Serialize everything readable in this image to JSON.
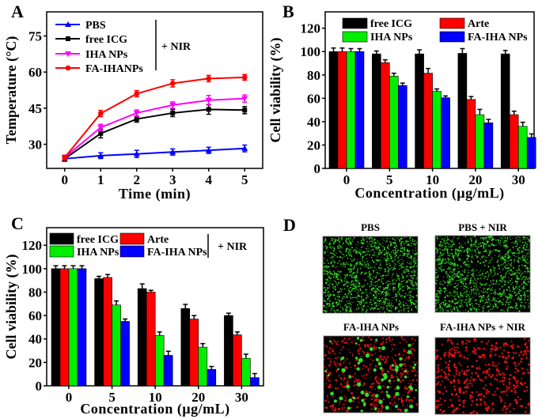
{
  "panel_labels": [
    "A",
    "B",
    "C",
    "D"
  ],
  "chart_data": [
    {
      "type": "line",
      "panel": "A",
      "xlabel": "Time (min)",
      "ylabel": "Temperature (°C)",
      "x": [
        0,
        1,
        2,
        3,
        4,
        5
      ],
      "xticks": [
        0,
        1,
        2,
        3,
        4,
        5
      ],
      "yticks": [
        30,
        45,
        60,
        75
      ],
      "xlim": [
        -0.5,
        5.5
      ],
      "ylim": [
        20,
        85
      ],
      "legend_note": "+ NIR",
      "legend_placement": "top-left",
      "series": [
        {
          "name": "PBS",
          "color": "#0000ff",
          "marker": "triangle-up",
          "values": [
            24,
            25.3,
            26,
            26.8,
            27.5,
            28.3
          ],
          "error": [
            1,
            1.2,
            1.5,
            1.3,
            1.3,
            1.4
          ]
        },
        {
          "name": "free ICG",
          "color": "#000000",
          "marker": "square",
          "values": [
            24,
            34.5,
            40.5,
            43,
            44.5,
            44.2
          ],
          "error": [
            1,
            1.8,
            1.3,
            1.5,
            2,
            1.5
          ]
        },
        {
          "name": "IHA NPs",
          "color": "#ff00ff",
          "marker": "triangle-down",
          "values": [
            24.5,
            37,
            43,
            46.3,
            48.3,
            49
          ],
          "error": [
            1,
            1.3,
            1.3,
            1.3,
            2,
            1.5
          ]
        },
        {
          "name": "FA-IHANPs",
          "color": "#ff0000",
          "marker": "circle",
          "values": [
            24.5,
            42.8,
            51,
            55.3,
            57.3,
            57.8
          ],
          "error": [
            1,
            1.3,
            1.3,
            1.5,
            1.3,
            1.2
          ]
        }
      ]
    },
    {
      "type": "bar",
      "panel": "B",
      "xlabel": "Concentration (μg/mL)",
      "ylabel": "Cell viability (%)",
      "categories": [
        "0",
        "5",
        "10",
        "20",
        "30"
      ],
      "yticks": [
        0,
        20,
        40,
        60,
        80,
        100,
        120
      ],
      "ylim": [
        0,
        134
      ],
      "legend_placement": "top",
      "series": [
        {
          "name": "free ICG",
          "color": "#000000",
          "values": [
            100,
            98,
            98,
            98.5,
            98
          ],
          "error": [
            3,
            2.5,
            3.5,
            4,
            3
          ]
        },
        {
          "name": "Arte",
          "color": "#ff0000",
          "values": [
            100,
            90.5,
            81.5,
            59,
            46
          ],
          "error": [
            3,
            2.5,
            4,
            2.5,
            3
          ]
        },
        {
          "name": "IHA NPs",
          "color": "#00ee00",
          "values": [
            100,
            79,
            66,
            46,
            36
          ],
          "error": [
            2.5,
            2.5,
            2,
            4.5,
            3.5
          ]
        },
        {
          "name": "FA-IHA NPs",
          "color": "#0000ff",
          "values": [
            100,
            71,
            60.5,
            39,
            26.5
          ],
          "error": [
            2.5,
            2,
            1.5,
            3,
            3
          ]
        }
      ]
    },
    {
      "type": "bar",
      "panel": "C",
      "xlabel": "Concentration (μg/mL)",
      "ylabel": "Cell viability (%)",
      "categories": [
        "0",
        "5",
        "10",
        "20",
        "30"
      ],
      "yticks": [
        0,
        20,
        40,
        60,
        80,
        100,
        120
      ],
      "ylim": [
        0,
        135
      ],
      "legend_note": "+ NIR",
      "legend_placement": "top",
      "series": [
        {
          "name": "free ICG",
          "color": "#000000",
          "values": [
            100,
            91.5,
            83,
            66,
            60
          ],
          "error": [
            2.5,
            2,
            4,
            3.5,
            2
          ]
        },
        {
          "name": "Arte",
          "color": "#ff0000",
          "values": [
            100,
            92.5,
            80,
            57,
            43.5
          ],
          "error": [
            2.5,
            2.5,
            1.5,
            3,
            2.5
          ]
        },
        {
          "name": "IHA NPs",
          "color": "#00ee00",
          "values": [
            100,
            69,
            43,
            33,
            23.5
          ],
          "error": [
            2.5,
            3.5,
            3,
            3,
            3.5
          ]
        },
        {
          "name": "FA-IHA NPs",
          "color": "#0000ff",
          "values": [
            100,
            55,
            26,
            14,
            7
          ],
          "error": [
            2.5,
            2,
            3.5,
            2.5,
            3.5
          ]
        }
      ]
    }
  ],
  "micrographs": [
    {
      "label": "PBS",
      "live_color": "#33dd22",
      "dead_color": "#ee1111",
      "content": "mostly-live"
    },
    {
      "label": "PBS + NIR",
      "live_color": "#33dd22",
      "dead_color": "#ee1111",
      "content": "mostly-live"
    },
    {
      "label": "FA-IHA NPs",
      "live_color": "#33dd22",
      "dead_color": "#ee1111",
      "content": "mixed"
    },
    {
      "label": "FA-IHA NPs  + NIR",
      "live_color": "#33dd22",
      "dead_color": "#ee1111",
      "content": "mostly-dead"
    }
  ]
}
